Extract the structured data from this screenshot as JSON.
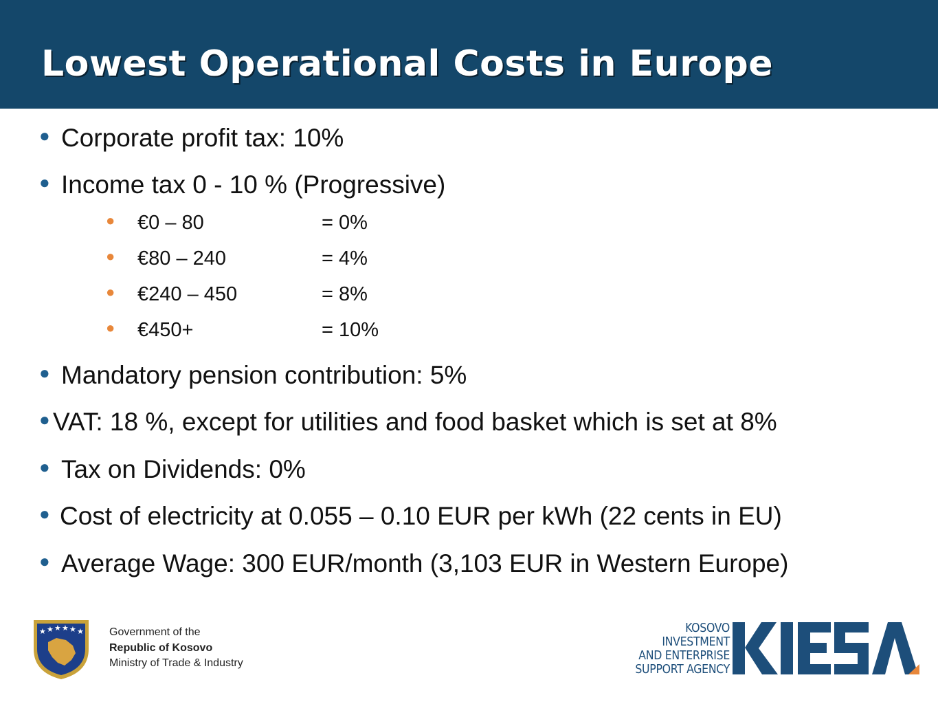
{
  "title": "Lowest Operational Costs in Europe",
  "bullets": {
    "corporate_tax": "Corporate profit tax: 10%",
    "income_tax": "Income tax 0 - 10 % (Progressive)",
    "brackets": [
      {
        "range": "€0 – 80",
        "rate": "= 0%"
      },
      {
        "range": "€80 – 240",
        "rate": "= 4%"
      },
      {
        "range": "€240 – 450",
        "rate": "= 8%"
      },
      {
        "range": "€450+",
        "rate": "= 10%"
      }
    ],
    "pension": "Mandatory pension contribution: 5%",
    "vat": "VAT: 18 %, except for utilities and food basket which is set at 8%",
    "dividends": "Tax on Dividends: 0%",
    "electricity": "Cost of electricity at 0.055 – 0.10 EUR per kWh (22 cents in EU)",
    "wage": "Average Wage: 300 EUR/month (3,103 EUR in Western Europe)"
  },
  "footer": {
    "gov_line1": "Government of the",
    "gov_line2": "Republic of Kosovo",
    "gov_line3": "Ministry of Trade & Industry",
    "agency_line1": "KOSOVO",
    "agency_line2": "INVESTMENT",
    "agency_line3": "AND ENTERPRISE",
    "agency_line4": "SUPPORT AGENCY",
    "logo_text": "KIESA"
  },
  "colors": {
    "header_bg": "#14476a",
    "primary_bullet": "#1f5f8f",
    "secondary_bullet": "#e8873a",
    "logo_blue": "#1d4e7a",
    "logo_accent": "#e8873a"
  }
}
